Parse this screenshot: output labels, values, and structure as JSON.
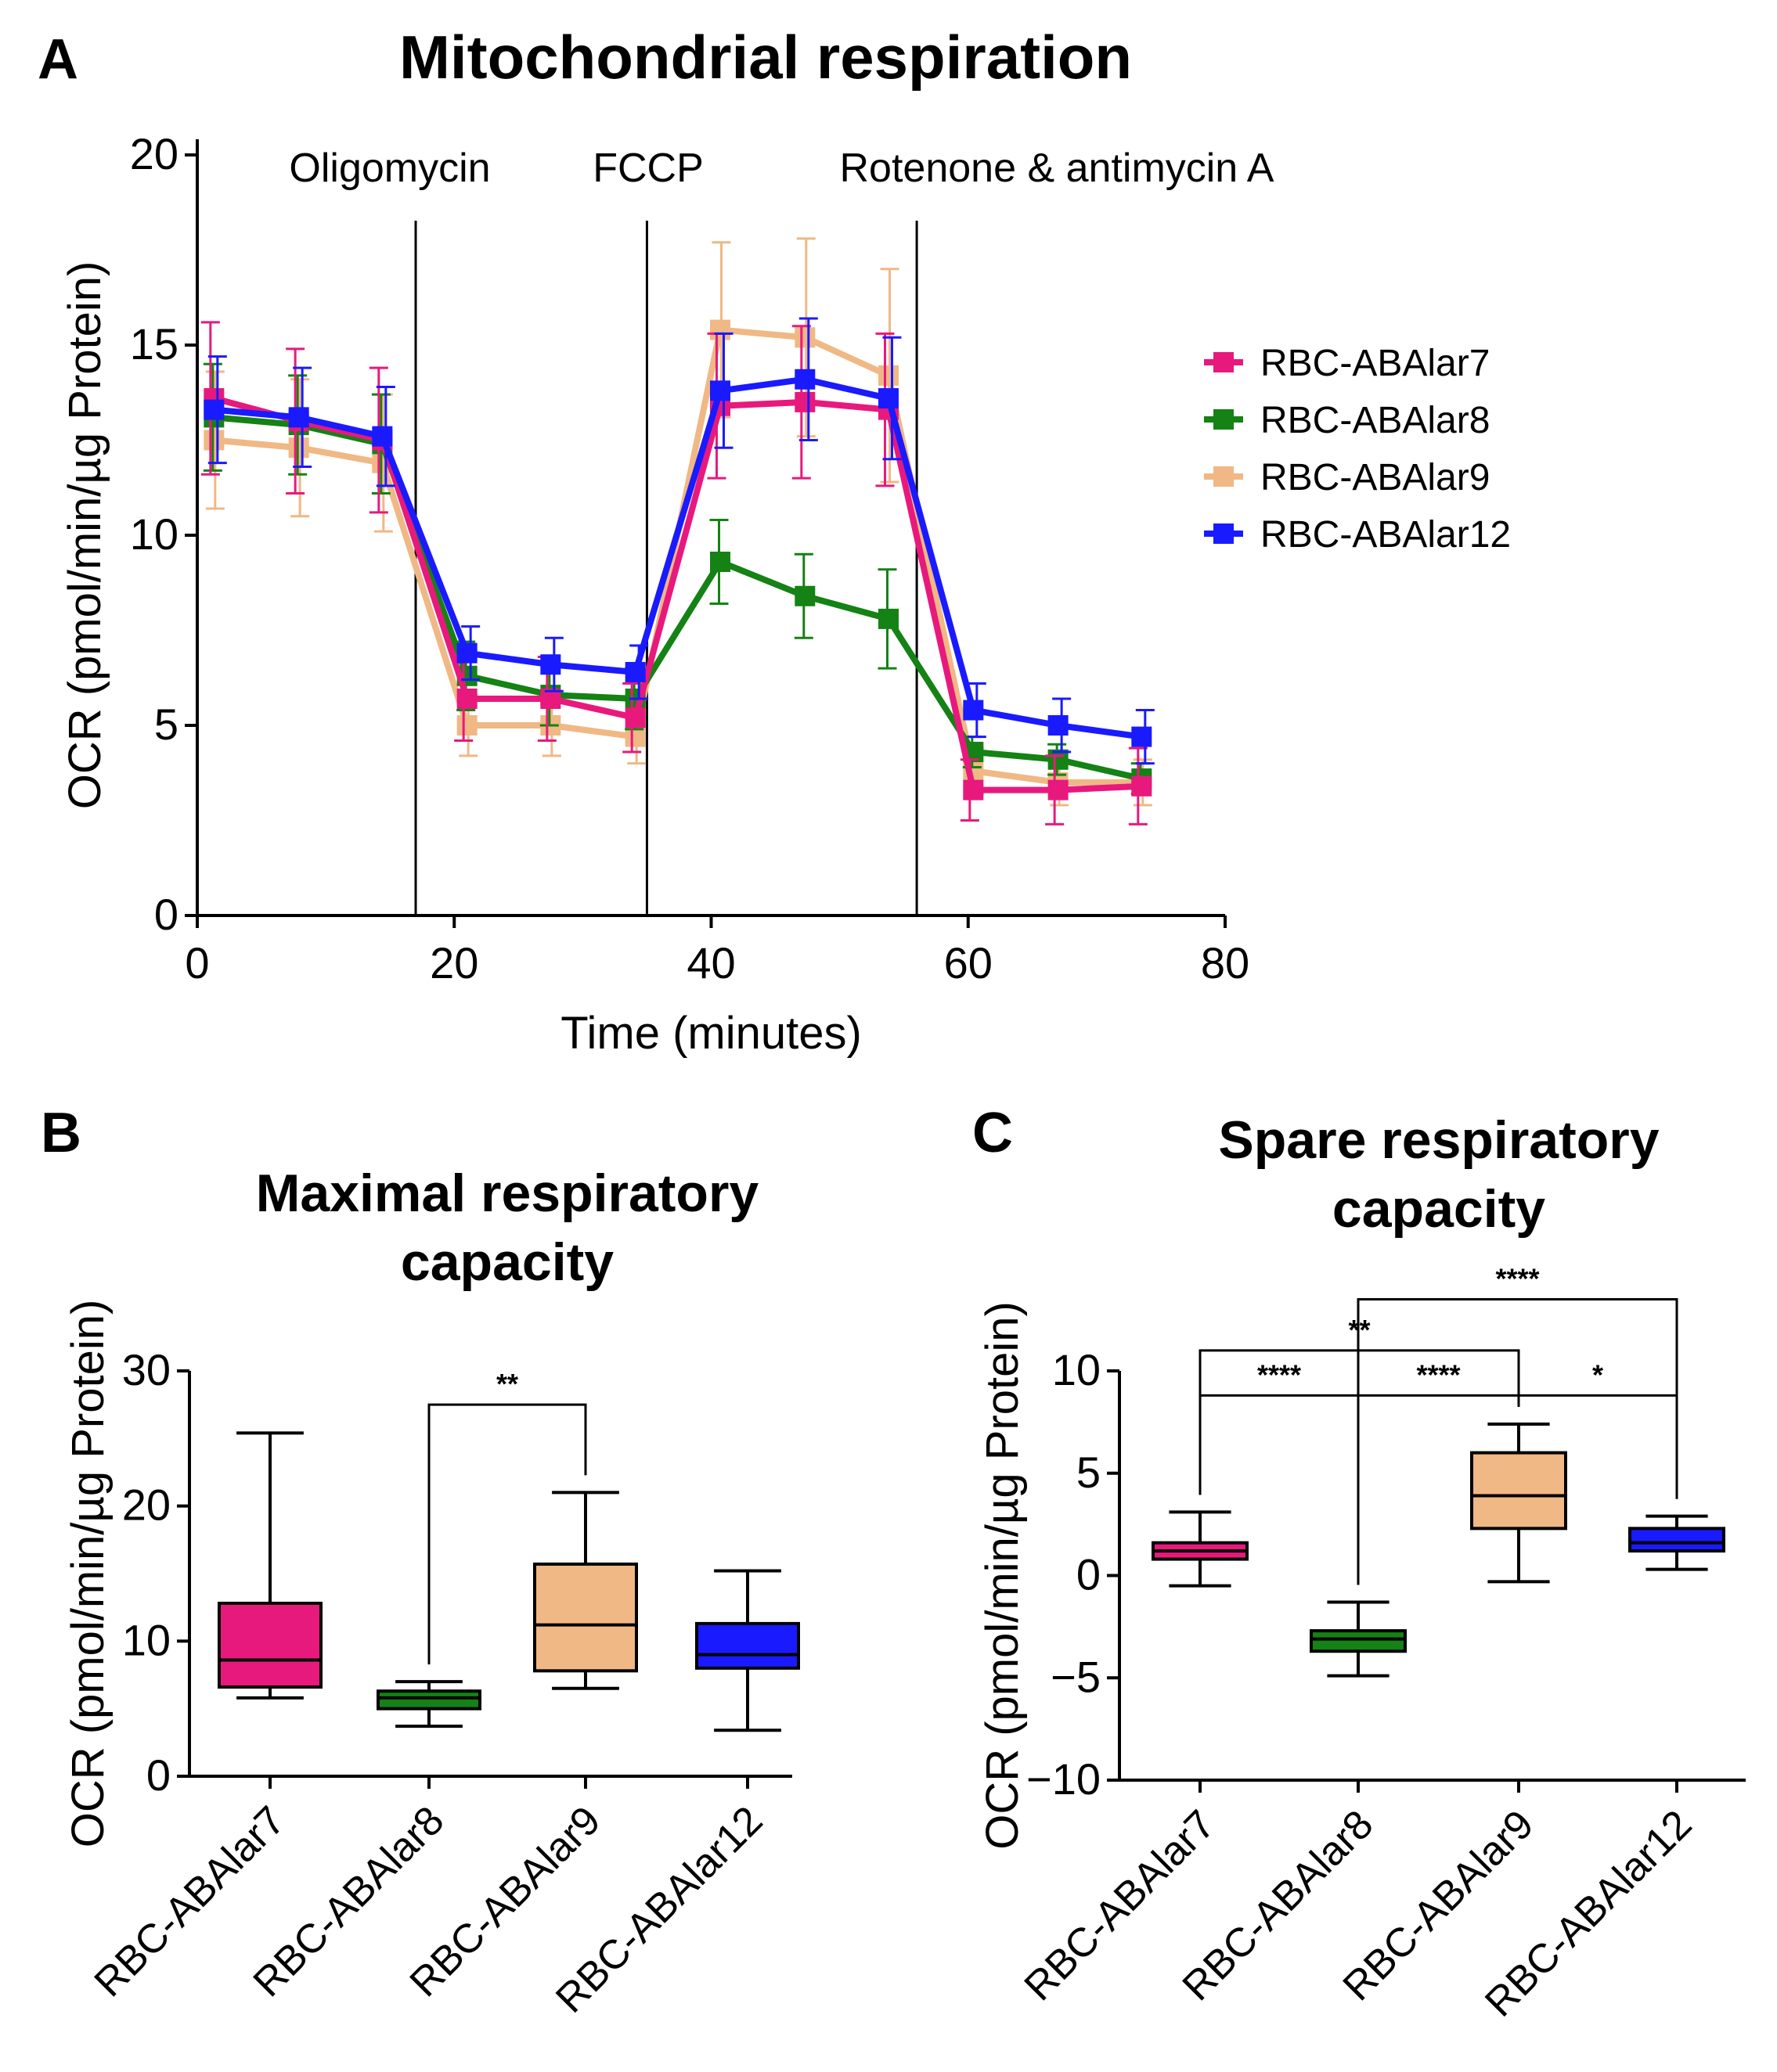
{
  "chart_data": [
    {
      "panel": "A",
      "type": "line",
      "title": "Mitochondrial respiration",
      "xlabel": "Time (minutes)",
      "ylabel": "OCR (pmol/min/µg Protein)",
      "xlim": [
        0,
        80
      ],
      "ylim": [
        0,
        20
      ],
      "xticks": [
        0,
        20,
        40,
        60,
        80
      ],
      "yticks": [
        0,
        5,
        10,
        15,
        20
      ],
      "grid": false,
      "legend_position": "right",
      "treatments": [
        {
          "label": "Oligomycin",
          "x": 17
        },
        {
          "label": "FCCP",
          "x": 35
        },
        {
          "label": "Rotenone & antimycin A",
          "x": 56
        }
      ],
      "x": [
        1.3,
        7.9,
        14.4,
        21.0,
        27.5,
        34.1,
        40.7,
        47.3,
        53.8,
        60.4,
        67.0,
        73.5
      ],
      "series": [
        {
          "name": "RBC-ABAlar7",
          "color": "#e8197c",
          "values": [
            13.6,
            13.0,
            12.5,
            5.7,
            5.7,
            5.2,
            13.4,
            13.5,
            13.3,
            3.3,
            3.3,
            3.4
          ],
          "errors": [
            2.0,
            1.9,
            1.9,
            1.1,
            1.1,
            0.9,
            1.9,
            2.0,
            2.0,
            0.8,
            0.9,
            1.0
          ]
        },
        {
          "name": "RBC-ABAlar8",
          "color": "#148214",
          "values": [
            13.1,
            12.9,
            12.4,
            6.3,
            5.8,
            5.7,
            9.3,
            8.4,
            7.8,
            4.3,
            4.1,
            3.6
          ],
          "errors": [
            1.4,
            1.3,
            1.3,
            0.9,
            0.8,
            0.8,
            1.1,
            1.1,
            1.3,
            0.4,
            0.4,
            0.4
          ]
        },
        {
          "name": "RBC-ABAlar9",
          "color": "#f0b884",
          "values": [
            12.5,
            12.3,
            11.9,
            5.0,
            5.0,
            4.7,
            15.4,
            15.2,
            14.2,
            3.8,
            3.5,
            3.5
          ],
          "errors": [
            1.8,
            1.8,
            1.8,
            0.8,
            0.8,
            0.7,
            2.3,
            2.6,
            2.8,
            0.6,
            0.6,
            0.6
          ]
        },
        {
          "name": "RBC-ABAlar12",
          "color": "#1a1aff",
          "values": [
            13.3,
            13.1,
            12.6,
            6.9,
            6.6,
            6.4,
            13.8,
            14.1,
            13.6,
            5.4,
            5.0,
            4.7
          ],
          "errors": [
            1.4,
            1.3,
            1.3,
            0.7,
            0.7,
            0.7,
            1.5,
            1.6,
            1.6,
            0.7,
            0.7,
            0.7
          ]
        }
      ]
    },
    {
      "panel": "B",
      "type": "box",
      "title": "Maximal respiratory capacity",
      "title_lines": [
        "Maximal respiratory",
        "capacity"
      ],
      "ylabel": "OCR (pmol/min/µg Protein)",
      "ylim": [
        0,
        30
      ],
      "yticks": [
        0,
        10,
        20,
        30
      ],
      "grid": false,
      "categories": [
        "RBC-ABAlar7",
        "RBC-ABAlar8",
        "RBC-ABAlar9",
        "RBC-ABAlar12"
      ],
      "colors": [
        "#e8197c",
        "#148214",
        "#f0b884",
        "#1a1aff"
      ],
      "boxes": [
        {
          "min": 5.8,
          "q1": 6.6,
          "median": 8.6,
          "q3": 12.8,
          "max": 25.4
        },
        {
          "min": 3.7,
          "q1": 5.0,
          "median": 5.8,
          "q3": 6.3,
          "max": 7.0
        },
        {
          "min": 6.5,
          "q1": 7.8,
          "median": 11.2,
          "q3": 15.7,
          "max": 21.0
        },
        {
          "min": 3.4,
          "q1": 8.0,
          "median": 9.0,
          "q3": 11.3,
          "max": 15.2
        }
      ],
      "significance": [
        {
          "from": 1,
          "to": 2,
          "label": "**",
          "y": 27.5
        }
      ]
    },
    {
      "panel": "C",
      "type": "box",
      "title": "Spare respiratory capacity",
      "title_lines": [
        "Spare respiratory",
        "capacity"
      ],
      "ylabel": "OCR (pmol/min/µg Protein)",
      "ylim": [
        -10,
        10
      ],
      "yticks": [
        -10,
        -5,
        0,
        5,
        10
      ],
      "grid": false,
      "categories": [
        "RBC-ABAlar7",
        "RBC-ABAlar8",
        "RBC-ABAlar9",
        "RBC-ABAlar12"
      ],
      "colors": [
        "#e8197c",
        "#148214",
        "#f0b884",
        "#1a1aff"
      ],
      "boxes": [
        {
          "min": -0.5,
          "q1": 0.8,
          "median": 1.2,
          "q3": 1.6,
          "max": 3.1
        },
        {
          "min": -4.9,
          "q1": -3.7,
          "median": -3.1,
          "q3": -2.7,
          "max": -1.3
        },
        {
          "min": -0.3,
          "q1": 2.3,
          "median": 3.9,
          "q3": 6.0,
          "max": 7.4
        },
        {
          "min": 0.3,
          "q1": 1.2,
          "median": 1.6,
          "q3": 2.3,
          "max": 2.9
        }
      ],
      "significance": [
        {
          "from": 1,
          "to": 3,
          "label": "****",
          "y": 13.5
        },
        {
          "from": 0,
          "to": 2,
          "label": "**",
          "y": 11.0
        },
        {
          "from": 0,
          "to": 1,
          "label": "****",
          "y": 8.8
        },
        {
          "from": 1,
          "to": 2,
          "label": "****",
          "y": 8.8
        },
        {
          "from": 2,
          "to": 3,
          "label": "*",
          "y": 8.8
        }
      ]
    }
  ]
}
